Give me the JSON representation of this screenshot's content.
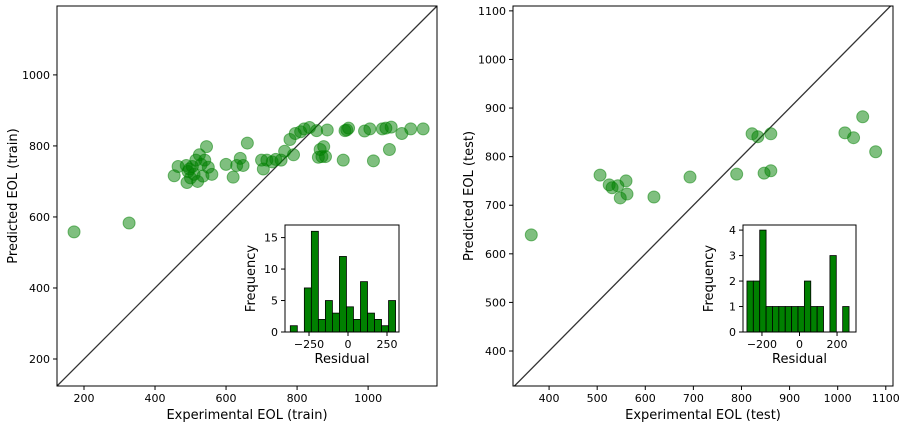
{
  "chart_data": [
    {
      "type": "scatter",
      "xlabel": "Experimental EOL (train)",
      "ylabel": "Predicted EOL (train)",
      "color": "green",
      "x": [
        172,
        327,
        454,
        465,
        488,
        490,
        493,
        497,
        500,
        505,
        510,
        515,
        520,
        525,
        530,
        535,
        540,
        545,
        550,
        560,
        600,
        620,
        630,
        640,
        648,
        660,
        700,
        705,
        715,
        730,
        740,
        755,
        765,
        780,
        790,
        795,
        810,
        820,
        835,
        855,
        860,
        865,
        870,
        875,
        880,
        885,
        930,
        935,
        940,
        945,
        990,
        1005,
        1015,
        1040,
        1050,
        1060,
        1065,
        1095,
        1120,
        1155
      ],
      "values": [
        558,
        583,
        716,
        742,
        745,
        697,
        728,
        735,
        710,
        742,
        720,
        760,
        700,
        775,
        748,
        715,
        760,
        798,
        740,
        720,
        748,
        712,
        745,
        765,
        745,
        808,
        760,
        735,
        760,
        755,
        762,
        760,
        785,
        818,
        775,
        835,
        840,
        848,
        852,
        843,
        768,
        790,
        770,
        798,
        770,
        845,
        760,
        843,
        845,
        850,
        842,
        848,
        758,
        848,
        850,
        790,
        853,
        835,
        848,
        848
      ],
      "xlim": [
        124,
        1194
      ],
      "ylim": [
        124,
        1194
      ],
      "xticks": [
        200,
        400,
        600,
        800,
        1000
      ],
      "yticks": [
        200,
        400,
        600,
        800,
        1000
      ]
    },
    {
      "type": "histogram",
      "xlabel": "Residual",
      "ylabel": "Frequency",
      "color": "green",
      "bins": [
        -370,
        -325,
        -280,
        -235,
        -190,
        -145,
        -100,
        -55,
        -10,
        35,
        80,
        125,
        170,
        215,
        260,
        305
      ],
      "values": [
        1,
        0,
        7,
        16,
        2,
        5,
        3,
        12,
        4,
        2,
        8,
        3,
        2,
        1,
        5
      ],
      "xlim": [
        -404,
        327
      ],
      "ylim": [
        0,
        17
      ],
      "xticks": [
        {
          "value": -250,
          "label": "−250"
        },
        0,
        250
      ],
      "yticks": [
        0,
        5,
        10,
        15
      ]
    },
    {
      "type": "scatter",
      "xlabel": "Experimental EOL (test)",
      "ylabel": "Predicted EOL (test)",
      "color": "green",
      "x": [
        363,
        506,
        525,
        531,
        543,
        548,
        560,
        562,
        618,
        693,
        790,
        822,
        834,
        847,
        861,
        861,
        1015,
        1033,
        1052,
        1079
      ],
      "values": [
        639,
        762,
        742,
        736,
        740,
        715,
        750,
        723,
        717,
        758,
        764,
        847,
        841,
        766,
        847,
        771,
        849,
        839,
        882,
        810
      ],
      "xlim": [
        325,
        1115
      ],
      "ylim": [
        328,
        1110
      ],
      "xticks": [
        400,
        500,
        600,
        700,
        800,
        900,
        1000,
        1100
      ],
      "yticks": [
        400,
        500,
        600,
        700,
        800,
        900,
        1000,
        1100
      ]
    },
    {
      "type": "histogram",
      "xlabel": "Residual",
      "ylabel": "Frequency",
      "color": "green",
      "bins": [
        -280,
        -246,
        -212,
        -178,
        -144,
        -110,
        -76,
        -42,
        -8,
        26,
        60,
        94,
        128,
        162,
        196,
        230,
        264
      ],
      "values": [
        2,
        2,
        4,
        1,
        1,
        1,
        1,
        1,
        1,
        2,
        1,
        1,
        0,
        3,
        0,
        1
      ],
      "xlim": [
        -301,
        301
      ],
      "ylim": [
        0,
        4.2
      ],
      "xticks": [
        {
          "value": -200,
          "label": "−200"
        },
        0,
        200
      ],
      "yticks": [
        0,
        1,
        2,
        3,
        4
      ]
    }
  ]
}
